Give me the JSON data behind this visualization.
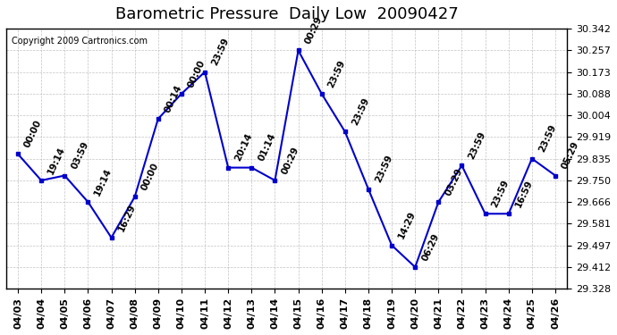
{
  "title": "Barometric Pressure  Daily Low  20090427",
  "copyright": "Copyright 2009 Cartronics.com",
  "x_labels": [
    "04/03",
    "04/04",
    "04/05",
    "04/06",
    "04/07",
    "04/08",
    "04/09",
    "04/10",
    "04/11",
    "04/12",
    "04/13",
    "04/14",
    "04/15",
    "04/16",
    "04/17",
    "04/18",
    "04/19",
    "04/20",
    "04/21",
    "04/22",
    "04/23",
    "04/24",
    "04/25",
    "04/26"
  ],
  "y_values": [
    29.853,
    29.75,
    29.769,
    29.666,
    29.527,
    29.686,
    29.99,
    30.088,
    30.173,
    29.8,
    29.8,
    29.75,
    30.257,
    30.088,
    29.94,
    29.716,
    29.497,
    29.412,
    29.666,
    29.808,
    29.62,
    29.62,
    29.835,
    29.769
  ],
  "point_labels": [
    "00:00",
    "19:14",
    "03:59",
    "19:14",
    "16:29",
    "00:00",
    "00:14",
    "00:00",
    "23:59",
    "20:14",
    "01:14",
    "00:29",
    "00:29",
    "23:59",
    "23:59",
    "23:59",
    "14:29",
    "06:29",
    "03:29",
    "23:59",
    "23:59",
    "16:59",
    "23:59",
    "05:29"
  ],
  "y_ticks": [
    29.328,
    29.412,
    29.497,
    29.581,
    29.666,
    29.75,
    29.835,
    29.919,
    30.004,
    30.088,
    30.173,
    30.257,
    30.342
  ],
  "ylim_min": 29.328,
  "ylim_max": 30.342,
  "line_color": "#0000cc",
  "marker_color": "#0000cc",
  "bg_color": "#ffffff",
  "grid_color": "#aaaaaa",
  "title_fontsize": 13,
  "tick_fontsize": 8,
  "label_fontsize": 7.5
}
